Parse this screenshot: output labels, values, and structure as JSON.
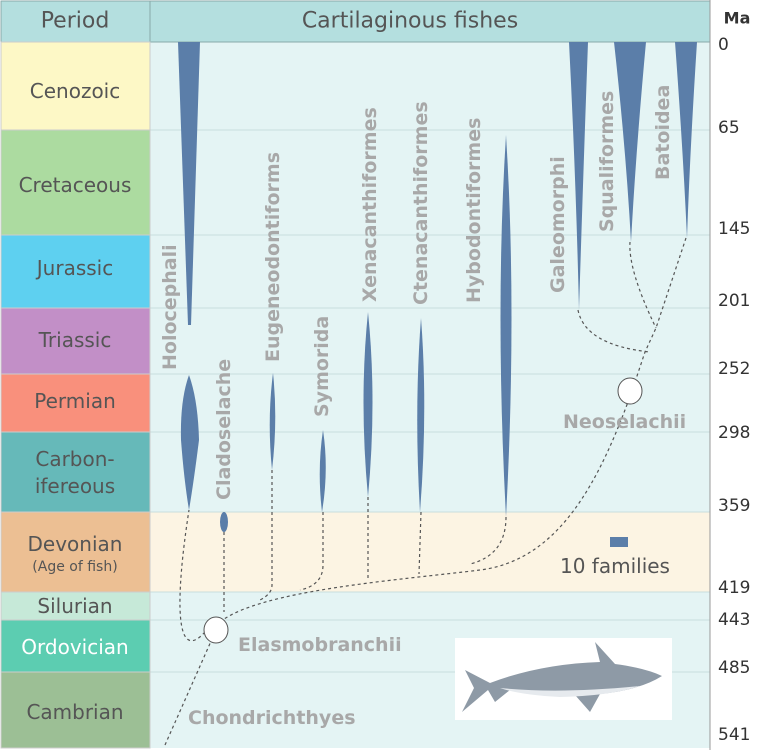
{
  "header": {
    "period": "Period",
    "group": "Cartilaginous fishes",
    "unit": "Ma"
  },
  "periods": [
    [
      "Cenozoic"
    ],
    [
      "Cretaceous"
    ],
    [
      "Jurassic"
    ],
    [
      "Triassic"
    ],
    [
      "Permian"
    ],
    [
      "Carbon-",
      "ifereous"
    ],
    [
      "Devonian",
      "(Age of fish)"
    ],
    [
      "Silurian"
    ],
    [
      "Ordovician"
    ],
    [
      "Cambrian"
    ]
  ],
  "ma": [
    0,
    65,
    145,
    201,
    252,
    298,
    359,
    419,
    443,
    485,
    541
  ],
  "taxa": [
    "Holocephali",
    "Cladoselache",
    "Eugeneodontiforms",
    "Symorida",
    "Xenacanthiformes",
    "Ctenacanthiformes",
    "Hybodontiformes",
    "Galeomorphi",
    "Squaliformes",
    "Batoidea"
  ],
  "clades": [
    "Neoselachii",
    "Elasmobranchii",
    "Chondrichthyes"
  ],
  "legend": "10 families"
}
